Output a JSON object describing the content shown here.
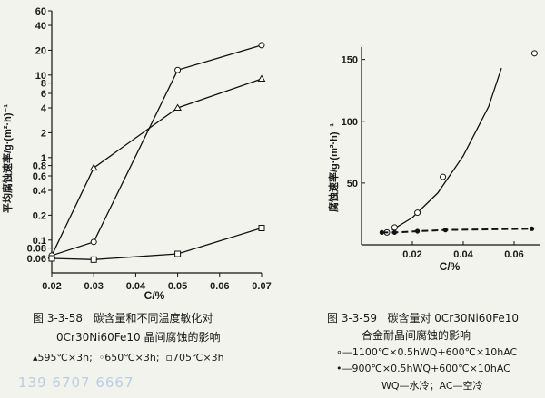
{
  "chart_data": [
    {
      "type": "line",
      "figure_number": "图 3-3-58",
      "caption_line1": "碳含量和不同温度敏化对",
      "caption_line2": "0Cr30Ni60Fe10 晶间腐蚀的影响",
      "ylabel": "平均腐蚀速率/g·(m²·h)⁻¹",
      "xlabel": "C/%",
      "y_scale": "log",
      "xlim": [
        0.02,
        0.07
      ],
      "ylim": [
        0.04,
        60
      ],
      "x_ticks": [
        "0.02",
        "0.03",
        "0.04",
        "0.05",
        "0.06",
        "0.07"
      ],
      "y_ticks": [
        {
          "value": 0.06,
          "label": "0.06"
        },
        {
          "value": 0.08,
          "label": "0.08"
        },
        {
          "value": 0.1,
          "label": "0.1"
        },
        {
          "value": 0.2,
          "label": "0.2"
        },
        {
          "value": 0.4,
          "label": "0.4"
        },
        {
          "value": 0.6,
          "label": "0.6"
        },
        {
          "value": 0.8,
          "label": "0.8"
        },
        {
          "value": 1,
          "label": "1"
        },
        {
          "value": 2,
          "label": "2"
        },
        {
          "value": 4,
          "label": "4"
        },
        {
          "value": 6,
          "label": "6"
        },
        {
          "value": 8,
          "label": "8"
        },
        {
          "value": 10,
          "label": "10"
        },
        {
          "value": 20,
          "label": "20"
        },
        {
          "value": 40,
          "label": "40"
        },
        {
          "value": 60,
          "label": "60"
        }
      ],
      "series": [
        {
          "name": "595℃×3h",
          "marker": "triangle",
          "x": [
            0.02,
            0.03,
            0.05,
            0.07
          ],
          "y": [
            0.065,
            0.75,
            4.0,
            9.0
          ]
        },
        {
          "name": "650℃×3h",
          "marker": "circle",
          "x": [
            0.02,
            0.03,
            0.05,
            0.07
          ],
          "y": [
            0.065,
            0.095,
            11.5,
            23.0
          ]
        },
        {
          "name": "705℃×3h",
          "marker": "square",
          "x": [
            0.02,
            0.03,
            0.05,
            0.07
          ],
          "y": [
            0.06,
            0.058,
            0.068,
            0.14
          ]
        }
      ],
      "legend_position": "below caption"
    },
    {
      "type": "scatter",
      "figure_number": "图 3-3-59",
      "caption_line1": "碳含量对 0Cr30Ni60Fe10",
      "caption_line2": "合金耐晶间腐蚀的影响",
      "ylabel": "腐蚀速率/g·(m²·h)⁻¹",
      "xlabel": "C/%",
      "xlim": [
        0.0,
        0.07
      ],
      "ylim": [
        0,
        160
      ],
      "x_ticks": [
        "0.02",
        "0.04",
        "0.06"
      ],
      "y_ticks": [
        "50",
        "100",
        "150"
      ],
      "series": [
        {
          "name": "1100℃×0.5hWQ+600℃×10hAC",
          "marker": "open-circle",
          "line": "solid",
          "x": [
            0.01,
            0.013,
            0.022,
            0.032,
            0.068
          ],
          "y": [
            10,
            14,
            26,
            55,
            155
          ],
          "trend_x": [
            0.012,
            0.02,
            0.03,
            0.04,
            0.05,
            0.055
          ],
          "trend_y": [
            12,
            22,
            42,
            72,
            112,
            143
          ]
        },
        {
          "name": "900℃×0.5hWQ+600℃×10hAC",
          "marker": "filled-circle",
          "line": "dashed",
          "x": [
            0.008,
            0.013,
            0.022,
            0.033,
            0.067
          ],
          "y": [
            10,
            10,
            11,
            12,
            13
          ]
        }
      ],
      "legend_note": "WQ—水冷；AC—空冷"
    }
  ],
  "footer": {
    "phone_watermark": "139 6707 6667"
  }
}
